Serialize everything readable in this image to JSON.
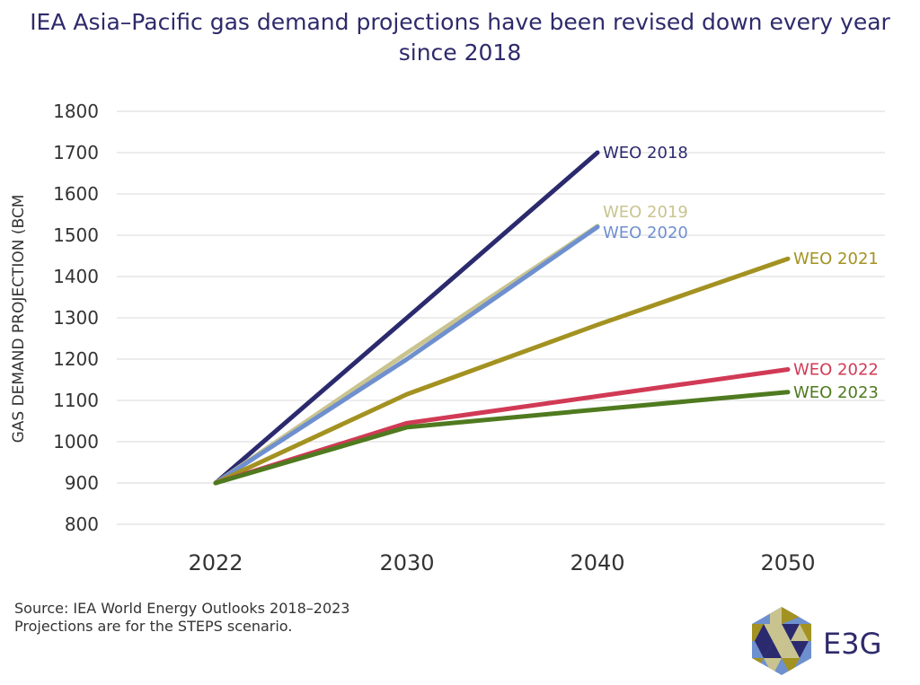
{
  "chart_data": {
    "type": "line",
    "title": "IEA Asia–Pacific gas demand projections have been revised down every year since 2018",
    "ylabel": "GAS DEMAND PROJECTION (BCM",
    "xlabel": "",
    "categories": [
      "2022",
      "2030",
      "2040",
      "2050"
    ],
    "ylim": [
      800,
      1800
    ],
    "yticks": [
      800,
      900,
      1000,
      1100,
      1200,
      1300,
      1400,
      1500,
      1600,
      1700,
      1800
    ],
    "grid": true,
    "legend": "inline-labels-at-line-ends",
    "series": [
      {
        "name": "WEO 2018",
        "color": "#2b2a6e",
        "values": [
          900,
          1300,
          1700,
          null
        ]
      },
      {
        "name": "WEO 2019",
        "color": "#c9c48f",
        "values": [
          900,
          1215,
          1522,
          null
        ]
      },
      {
        "name": "WEO 2020",
        "color": "#6f90cf",
        "values": [
          900,
          1200,
          1520,
          null
        ]
      },
      {
        "name": "WEO 2021",
        "color": "#a39221",
        "values": [
          900,
          1115,
          1283,
          1443
        ]
      },
      {
        "name": "WEO 2022",
        "color": "#d13a55",
        "values": [
          900,
          1045,
          1110,
          1175
        ]
      },
      {
        "name": "WEO 2023",
        "color": "#4f7a1f",
        "values": [
          900,
          1035,
          1078,
          1120
        ]
      }
    ]
  },
  "source": {
    "line1": "Source: IEA World Energy Outlooks 2018–2023",
    "line2": "Projections are for the STEPS scenario."
  },
  "logo": {
    "text": "E3G",
    "color": "#2e2a6b"
  }
}
